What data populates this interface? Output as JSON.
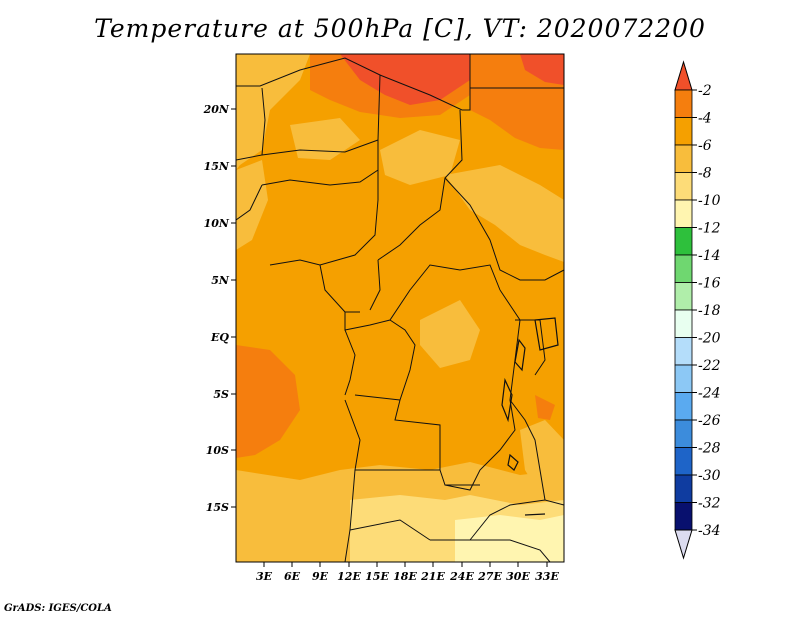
{
  "title": "Temperature at 500hPa [C], VT: 2020072200",
  "footer": "GrADS: IGES/COLA",
  "map": {
    "lat_labels": [
      "20N",
      "15N",
      "10N",
      "5N",
      "EQ",
      "5S",
      "10S",
      "15S"
    ],
    "lon_labels": [
      "3E",
      "6E",
      "9E",
      "12E",
      "15E",
      "18E",
      "21E",
      "24E",
      "27E",
      "30E",
      "33E"
    ]
  },
  "colorbar": {
    "labels": [
      "-2",
      "-4",
      "-6",
      "-8",
      "-10",
      "-12",
      "-14",
      "-16",
      "-18",
      "-20",
      "-22",
      "-24",
      "-26",
      "-28",
      "-30",
      "-32",
      "-34"
    ],
    "colors": [
      "#f0502a",
      "#f57e0e",
      "#f5a000",
      "#f8bd3c",
      "#fddc78",
      "#fff5b0",
      "#2ec03c",
      "#6fd770",
      "#b0eeaa",
      "#e8fff0",
      "#b4ddfa",
      "#8cc8f5",
      "#5aaaf0",
      "#3c8cdc",
      "#1e64c8",
      "#0f3ca0",
      "#08106e",
      "#dcdcf0"
    ],
    "top_color": "#f0502a",
    "bottom_color": "#dcdcf0"
  }
}
